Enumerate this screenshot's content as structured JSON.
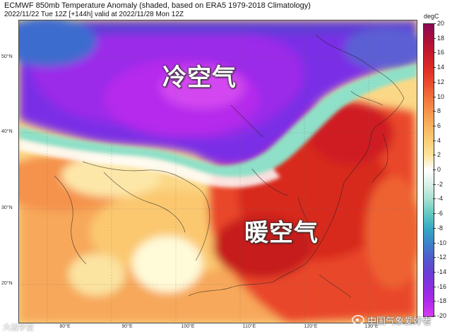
{
  "header": {
    "title": "ECMWF 850mb Temperature Anomaly (shaded, based on ERA5 1979-2018 Climatology)",
    "subtitle": "2022/11/22 Tue 12Z [+144h] valid at 2022/11/28 Mon 12Z"
  },
  "map": {
    "latitude_labels": [
      "50°N",
      "40°N",
      "30°N",
      "20°N"
    ],
    "longitude_labels": [
      "80°E",
      "90°E",
      "100°E",
      "110°E",
      "120°E",
      "130°E"
    ],
    "annotations": {
      "cold_air": "冷空气",
      "warm_air": "暖空气"
    }
  },
  "colorbar": {
    "unit": "degC",
    "ticks": [
      "20",
      "18",
      "16",
      "14",
      "12",
      "10",
      "8",
      "6",
      "4",
      "2",
      "0",
      "-2",
      "-4",
      "-6",
      "-8",
      "-10",
      "-12",
      "-14",
      "-16",
      "-18",
      "-20"
    ],
    "colors": [
      "#8b0a55",
      "#a80f3c",
      "#c51a2c",
      "#dc2b25",
      "#ea4a2e",
      "#f2703a",
      "#f7944a",
      "#f9b35d",
      "#fbce78",
      "#fde49c",
      "#ffffff",
      "#d9f0e8",
      "#a6e0d2",
      "#62c9c0",
      "#35a8c4",
      "#3d82c9",
      "#4f5ccc",
      "#6a3fd4",
      "#8a2ee0",
      "#b02ae8",
      "#d43cf0"
    ]
  },
  "watermarks": {
    "left": "大战学堂",
    "right": "中国气象爱好者"
  }
}
